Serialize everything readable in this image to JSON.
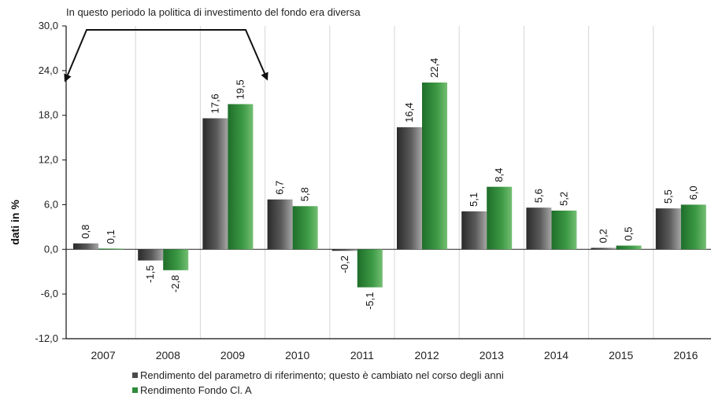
{
  "chart_data": {
    "type": "bar",
    "title": "",
    "annotation": "In questo periodo la politica di investimento del fondo era diversa",
    "xlabel": "",
    "ylabel": "dati in %",
    "ylim": [
      -12,
      30
    ],
    "yticks": [
      "30,0",
      "24,0",
      "18,0",
      "12,0",
      "6,0",
      "0,0",
      "-6,0",
      "-12,0"
    ],
    "ytick_values": [
      30,
      24,
      18,
      12,
      6,
      0,
      -6,
      -12
    ],
    "categories": [
      "2007",
      "2008",
      "2009",
      "2010",
      "2011",
      "2012",
      "2013",
      "2014",
      "2015",
      "2016"
    ],
    "series": [
      {
        "name": "Rendimento del parametro di riferimento; questo è cambiato nel corso degli anni",
        "values": [
          0.8,
          -1.5,
          17.6,
          6.7,
          -0.2,
          16.4,
          5.1,
          5.6,
          0.2,
          5.5
        ],
        "labels": [
          "0,8",
          "-1,5",
          "17,6",
          "6,7",
          "-0,2",
          "16,4",
          "5,1",
          "5,6",
          "0,2",
          "5,5"
        ],
        "color": "#3f3f3f"
      },
      {
        "name": "Rendimento Fondo Cl. A",
        "values": [
          0.1,
          -2.8,
          19.5,
          5.8,
          -5.1,
          22.4,
          8.4,
          5.2,
          0.5,
          6.0
        ],
        "labels": [
          "0,1",
          "-2,8",
          "19,5",
          "5,8",
          "-5,1",
          "22,4",
          "8,4",
          "5,2",
          "0,5",
          "6,0"
        ],
        "color": "#2e8b3a"
      }
    ],
    "grid": "vertical separators",
    "legend": "bottom"
  }
}
